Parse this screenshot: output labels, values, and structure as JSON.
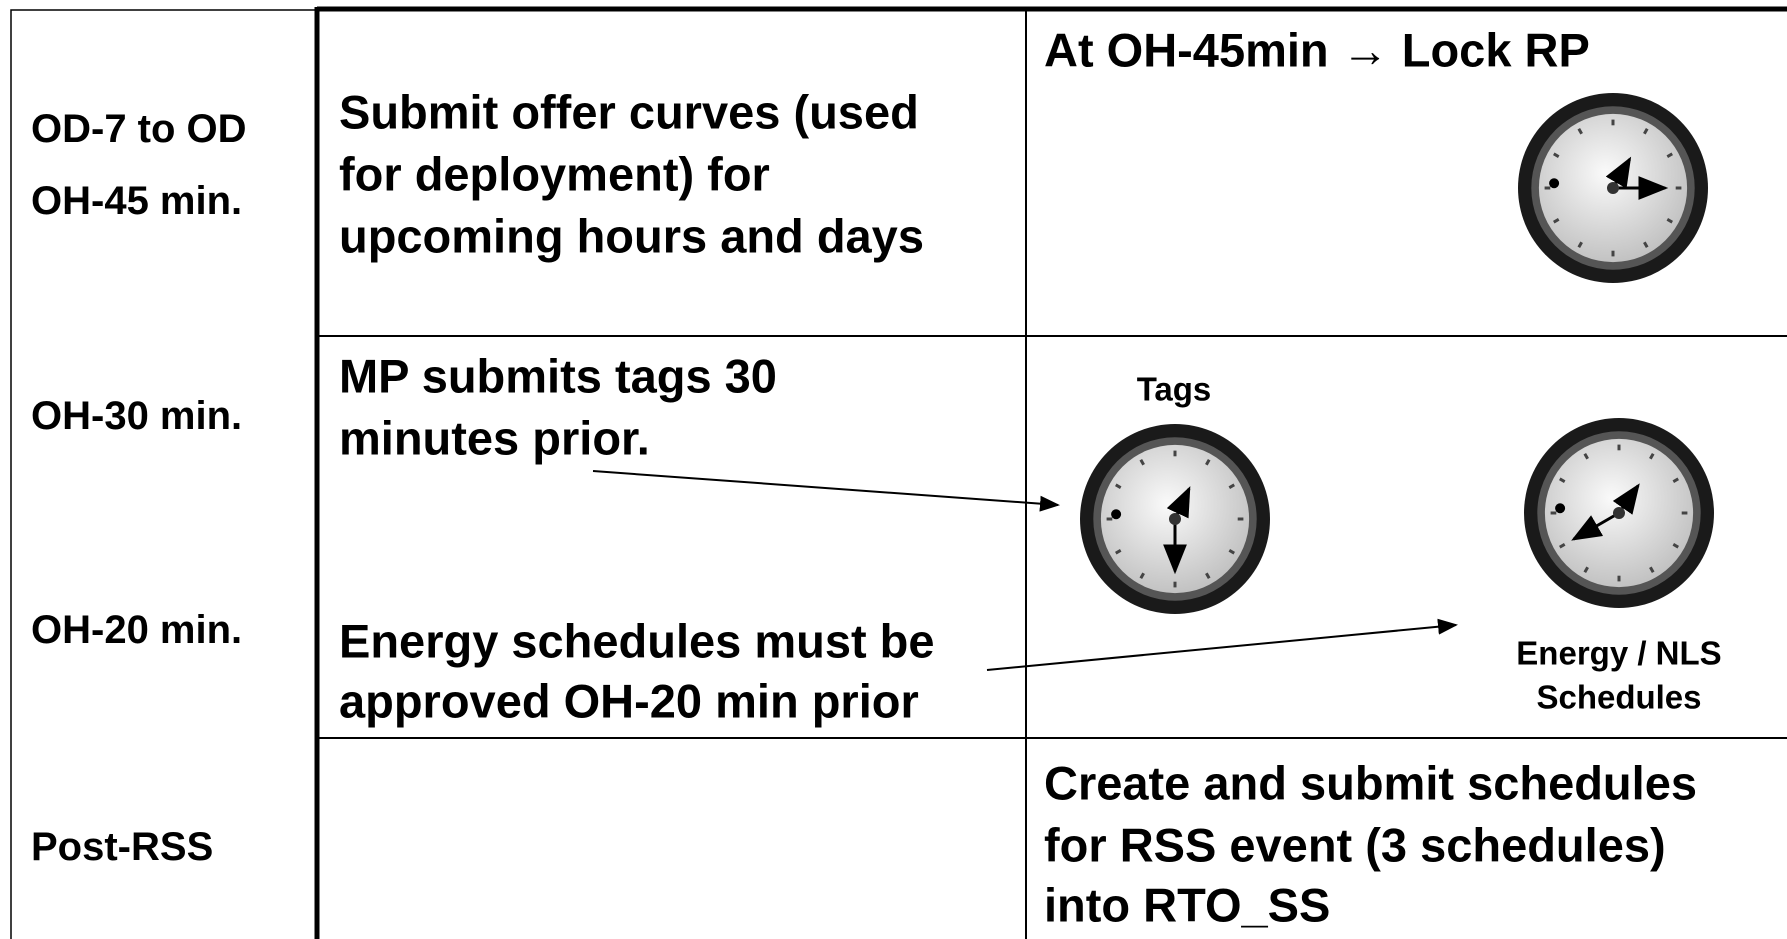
{
  "labels": [
    "OD-7 to OD",
    "OH-45 min.",
    "OH-30 min.",
    "OH-20 min.",
    "Post-RSS"
  ],
  "row1": {
    "task_lines": [
      "Submit offer curves (used",
      "for deployment) for",
      "upcoming hours and days"
    ],
    "event": "At OH-45min → Lock RP"
  },
  "row2": {
    "tags_task_lines": [
      "MP submits tags 30",
      "minutes prior."
    ],
    "schedule_task_lines": [
      "Energy schedules must be",
      "approved OH-20 min prior"
    ],
    "tags_caption": "Tags",
    "schedule_caption_lines": [
      "Energy / NLS",
      "Schedules"
    ]
  },
  "row3": {
    "event_lines": [
      "Create and submit schedules",
      "for RSS event (3 schedules)",
      "into RTO_SS"
    ]
  }
}
